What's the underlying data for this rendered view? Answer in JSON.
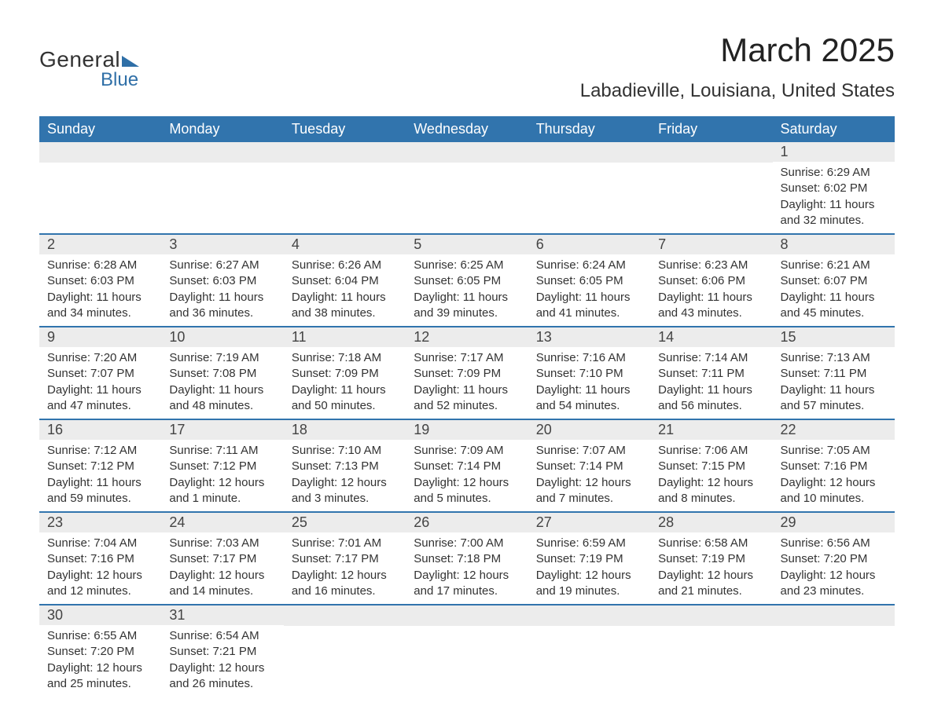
{
  "logo": {
    "line1": "General",
    "line2": "Blue"
  },
  "title": "March 2025",
  "location": "Labadieville, Louisiana, United States",
  "colors": {
    "header_bg": "#3174ad",
    "header_text": "#ffffff",
    "daynum_bg": "#ececec",
    "body_text": "#333333",
    "accent": "#2f6fa7",
    "page_bg": "#ffffff"
  },
  "typography": {
    "title_fontsize": 42,
    "location_fontsize": 24,
    "dayheader_fontsize": 18,
    "daynum_fontsize": 18,
    "body_fontsize": 15
  },
  "day_headers": [
    "Sunday",
    "Monday",
    "Tuesday",
    "Wednesday",
    "Thursday",
    "Friday",
    "Saturday"
  ],
  "labels": {
    "sunrise": "Sunrise:",
    "sunset": "Sunset:",
    "daylight": "Daylight:"
  },
  "weeks": [
    [
      null,
      null,
      null,
      null,
      null,
      null,
      {
        "n": 1,
        "sunrise": "6:29 AM",
        "sunset": "6:02 PM",
        "daylight": "11 hours and 32 minutes."
      }
    ],
    [
      {
        "n": 2,
        "sunrise": "6:28 AM",
        "sunset": "6:03 PM",
        "daylight": "11 hours and 34 minutes."
      },
      {
        "n": 3,
        "sunrise": "6:27 AM",
        "sunset": "6:03 PM",
        "daylight": "11 hours and 36 minutes."
      },
      {
        "n": 4,
        "sunrise": "6:26 AM",
        "sunset": "6:04 PM",
        "daylight": "11 hours and 38 minutes."
      },
      {
        "n": 5,
        "sunrise": "6:25 AM",
        "sunset": "6:05 PM",
        "daylight": "11 hours and 39 minutes."
      },
      {
        "n": 6,
        "sunrise": "6:24 AM",
        "sunset": "6:05 PM",
        "daylight": "11 hours and 41 minutes."
      },
      {
        "n": 7,
        "sunrise": "6:23 AM",
        "sunset": "6:06 PM",
        "daylight": "11 hours and 43 minutes."
      },
      {
        "n": 8,
        "sunrise": "6:21 AM",
        "sunset": "6:07 PM",
        "daylight": "11 hours and 45 minutes."
      }
    ],
    [
      {
        "n": 9,
        "sunrise": "7:20 AM",
        "sunset": "7:07 PM",
        "daylight": "11 hours and 47 minutes."
      },
      {
        "n": 10,
        "sunrise": "7:19 AM",
        "sunset": "7:08 PM",
        "daylight": "11 hours and 48 minutes."
      },
      {
        "n": 11,
        "sunrise": "7:18 AM",
        "sunset": "7:09 PM",
        "daylight": "11 hours and 50 minutes."
      },
      {
        "n": 12,
        "sunrise": "7:17 AM",
        "sunset": "7:09 PM",
        "daylight": "11 hours and 52 minutes."
      },
      {
        "n": 13,
        "sunrise": "7:16 AM",
        "sunset": "7:10 PM",
        "daylight": "11 hours and 54 minutes."
      },
      {
        "n": 14,
        "sunrise": "7:14 AM",
        "sunset": "7:11 PM",
        "daylight": "11 hours and 56 minutes."
      },
      {
        "n": 15,
        "sunrise": "7:13 AM",
        "sunset": "7:11 PM",
        "daylight": "11 hours and 57 minutes."
      }
    ],
    [
      {
        "n": 16,
        "sunrise": "7:12 AM",
        "sunset": "7:12 PM",
        "daylight": "11 hours and 59 minutes."
      },
      {
        "n": 17,
        "sunrise": "7:11 AM",
        "sunset": "7:12 PM",
        "daylight": "12 hours and 1 minute."
      },
      {
        "n": 18,
        "sunrise": "7:10 AM",
        "sunset": "7:13 PM",
        "daylight": "12 hours and 3 minutes."
      },
      {
        "n": 19,
        "sunrise": "7:09 AM",
        "sunset": "7:14 PM",
        "daylight": "12 hours and 5 minutes."
      },
      {
        "n": 20,
        "sunrise": "7:07 AM",
        "sunset": "7:14 PM",
        "daylight": "12 hours and 7 minutes."
      },
      {
        "n": 21,
        "sunrise": "7:06 AM",
        "sunset": "7:15 PM",
        "daylight": "12 hours and 8 minutes."
      },
      {
        "n": 22,
        "sunrise": "7:05 AM",
        "sunset": "7:16 PM",
        "daylight": "12 hours and 10 minutes."
      }
    ],
    [
      {
        "n": 23,
        "sunrise": "7:04 AM",
        "sunset": "7:16 PM",
        "daylight": "12 hours and 12 minutes."
      },
      {
        "n": 24,
        "sunrise": "7:03 AM",
        "sunset": "7:17 PM",
        "daylight": "12 hours and 14 minutes."
      },
      {
        "n": 25,
        "sunrise": "7:01 AM",
        "sunset": "7:17 PM",
        "daylight": "12 hours and 16 minutes."
      },
      {
        "n": 26,
        "sunrise": "7:00 AM",
        "sunset": "7:18 PM",
        "daylight": "12 hours and 17 minutes."
      },
      {
        "n": 27,
        "sunrise": "6:59 AM",
        "sunset": "7:19 PM",
        "daylight": "12 hours and 19 minutes."
      },
      {
        "n": 28,
        "sunrise": "6:58 AM",
        "sunset": "7:19 PM",
        "daylight": "12 hours and 21 minutes."
      },
      {
        "n": 29,
        "sunrise": "6:56 AM",
        "sunset": "7:20 PM",
        "daylight": "12 hours and 23 minutes."
      }
    ],
    [
      {
        "n": 30,
        "sunrise": "6:55 AM",
        "sunset": "7:20 PM",
        "daylight": "12 hours and 25 minutes."
      },
      {
        "n": 31,
        "sunrise": "6:54 AM",
        "sunset": "7:21 PM",
        "daylight": "12 hours and 26 minutes."
      },
      null,
      null,
      null,
      null,
      null
    ]
  ]
}
